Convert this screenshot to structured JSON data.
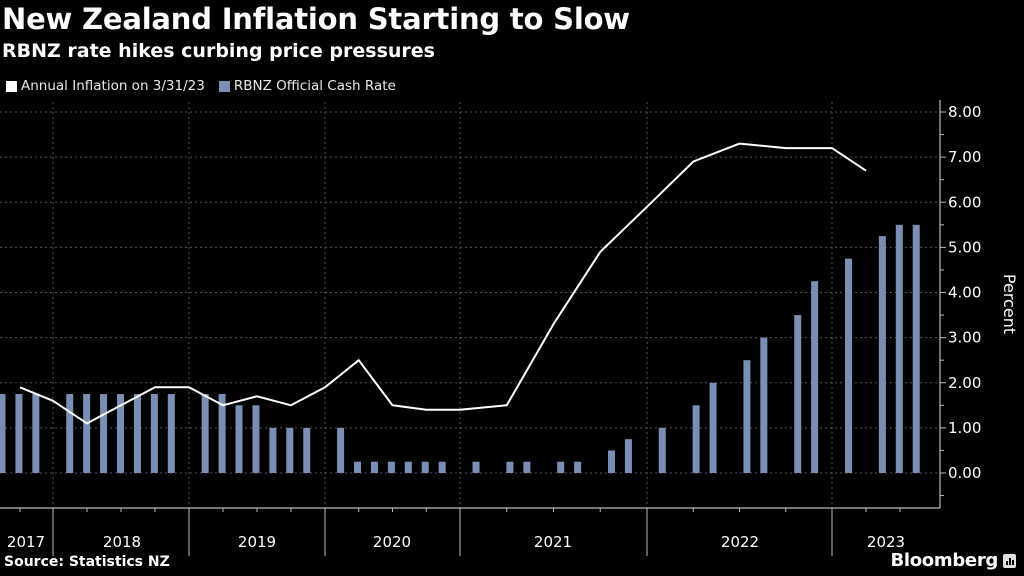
{
  "header": {
    "title": "New Zealand Inflation Starting to Slow",
    "subtitle": "RBNZ rate hikes curbing price pressures"
  },
  "footer": {
    "source": "Source: Statistics NZ",
    "brand": "Bloomberg"
  },
  "chart_data": {
    "type": "bar+line",
    "title": "New Zealand Inflation Starting to Slow",
    "subtitle": "RBNZ rate hikes curbing price pressures",
    "xlabel": "",
    "ylabel": "Percent",
    "ylim": [
      0,
      8
    ],
    "yticks": [
      "0.00",
      "1.00",
      "2.00",
      "3.00",
      "4.00",
      "5.00",
      "6.00",
      "7.00",
      "8.00"
    ],
    "y_axis_side": "right",
    "grid": true,
    "legend_position": "top-left",
    "x_years": [
      "2017",
      "2018",
      "2019",
      "2020",
      "2021",
      "2022",
      "2023"
    ],
    "series": [
      {
        "name": "Annual Inflation on 3/31/23",
        "type": "line",
        "color": "#ffffff",
        "x": [
          "2017-Q3",
          "2017-Q4",
          "2018-Q1",
          "2018-Q2",
          "2018-Q3",
          "2018-Q4",
          "2019-Q1",
          "2019-Q2",
          "2019-Q3",
          "2019-Q4",
          "2020-Q1",
          "2020-Q2",
          "2020-Q3",
          "2020-Q4",
          "2021-Q1",
          "2021-Q2",
          "2021-Q3",
          "2021-Q4",
          "2022-Q1",
          "2022-Q2",
          "2022-Q3",
          "2022-Q4",
          "2023-Q1"
        ],
        "values": [
          1.9,
          1.6,
          1.1,
          1.5,
          1.9,
          1.9,
          1.5,
          1.7,
          1.5,
          1.9,
          2.5,
          1.5,
          1.4,
          1.4,
          1.5,
          3.3,
          4.9,
          5.9,
          6.9,
          7.3,
          7.2,
          7.2,
          6.7
        ]
      },
      {
        "name": "RBNZ Official Cash Rate",
        "type": "bar",
        "color": "#7b8fb5",
        "slots": [
          0,
          1,
          2,
          4,
          5,
          6,
          7,
          8,
          9,
          10,
          12,
          13,
          14,
          15,
          16,
          17,
          18,
          20,
          21,
          22,
          23,
          24,
          25,
          26,
          28,
          30,
          31,
          33,
          34,
          36,
          37,
          39,
          41,
          42,
          44,
          45,
          47,
          48,
          50,
          52,
          53,
          54
        ],
        "values": [
          1.75,
          1.75,
          1.75,
          1.75,
          1.75,
          1.75,
          1.75,
          1.75,
          1.75,
          1.75,
          1.75,
          1.75,
          1.5,
          1.5,
          1.0,
          1.0,
          1.0,
          1.0,
          0.25,
          0.25,
          0.25,
          0.25,
          0.25,
          0.25,
          0.25,
          0.25,
          0.25,
          0.25,
          0.25,
          0.5,
          0.75,
          1.0,
          1.5,
          2.0,
          2.5,
          3.0,
          3.5,
          4.25,
          4.75,
          5.25,
          5.5,
          5.5
        ]
      }
    ]
  }
}
